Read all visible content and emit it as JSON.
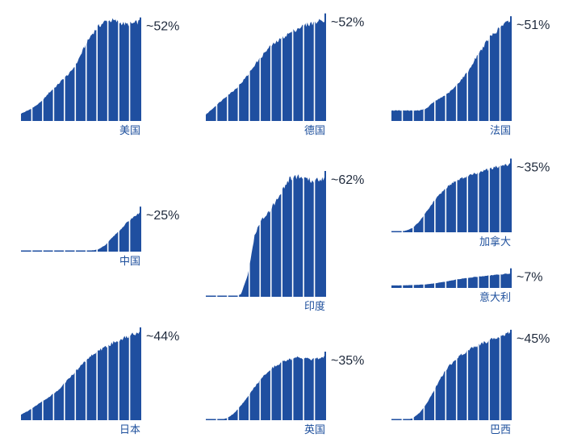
{
  "colors": {
    "fill": "#1f4fa0",
    "gap": "#ffffff",
    "pct_text": "#1f2a3c",
    "label_text": "#1d4f9c"
  },
  "chart_data": [
    {
      "type": "area",
      "country": "美国",
      "pct": "~52%",
      "values": [
        0.07,
        0.1,
        0.14,
        0.19,
        0.27,
        0.33,
        0.4,
        0.46,
        0.56,
        0.7,
        0.82,
        0.9,
        0.95,
        0.96,
        0.94,
        0.92,
        0.93,
        0.95
      ]
    },
    {
      "type": "area",
      "country": "德国",
      "pct": "~52%",
      "values": [
        0.06,
        0.12,
        0.18,
        0.24,
        0.29,
        0.36,
        0.44,
        0.54,
        0.62,
        0.7,
        0.75,
        0.8,
        0.84,
        0.88,
        0.91,
        0.93,
        0.95,
        0.97
      ]
    },
    {
      "type": "area",
      "country": "法国",
      "pct": "~51%",
      "values": [
        0.1,
        0.1,
        0.1,
        0.1,
        0.1,
        0.12,
        0.18,
        0.22,
        0.26,
        0.32,
        0.4,
        0.48,
        0.6,
        0.7,
        0.8,
        0.86,
        0.92,
        0.96
      ]
    },
    {
      "type": "area",
      "country": "中国",
      "pct": "~25%",
      "values": [
        0.0,
        0.0,
        0.0,
        0.0,
        0.0,
        0.0,
        0.0,
        0.0,
        0.0,
        0.0,
        0.02,
        0.04,
        0.12,
        0.26,
        0.38,
        0.52,
        0.63,
        0.72
      ]
    },
    {
      "type": "area",
      "country": "印度",
      "pct": "~62%",
      "values": [
        0.0,
        0.0,
        0.0,
        0.0,
        0.0,
        0.02,
        0.18,
        0.5,
        0.62,
        0.68,
        0.76,
        0.86,
        0.94,
        0.96,
        0.94,
        0.92,
        0.93,
        0.95
      ]
    },
    {
      "type": "area",
      "country": "加拿大",
      "pct": "~35%",
      "values": [
        0.0,
        0.01,
        0.02,
        0.06,
        0.15,
        0.29,
        0.42,
        0.54,
        0.63,
        0.7,
        0.74,
        0.78,
        0.81,
        0.84,
        0.87,
        0.9,
        0.92,
        0.94
      ]
    },
    {
      "type": "area",
      "country": "意大利",
      "pct": "~7%",
      "values": [
        0.14,
        0.14,
        0.15,
        0.16,
        0.18,
        0.2,
        0.25,
        0.31,
        0.38,
        0.45,
        0.52,
        0.57,
        0.62,
        0.66,
        0.7,
        0.74,
        0.78,
        0.82
      ]
    },
    {
      "type": "area",
      "country": "日本",
      "pct": "~44%",
      "values": [
        0.06,
        0.1,
        0.15,
        0.2,
        0.25,
        0.3,
        0.38,
        0.46,
        0.54,
        0.62,
        0.69,
        0.74,
        0.78,
        0.82,
        0.86,
        0.89,
        0.92,
        0.95
      ]
    },
    {
      "type": "area",
      "country": "英国",
      "pct": "~35%",
      "values": [
        0.0,
        0.0,
        0.0,
        0.03,
        0.09,
        0.2,
        0.32,
        0.46,
        0.58,
        0.68,
        0.75,
        0.8,
        0.83,
        0.85,
        0.84,
        0.82,
        0.84,
        0.87
      ]
    },
    {
      "type": "area",
      "country": "巴西",
      "pct": "~45%",
      "values": [
        0.0,
        0.0,
        0.0,
        0.02,
        0.08,
        0.18,
        0.32,
        0.46,
        0.58,
        0.66,
        0.72,
        0.77,
        0.81,
        0.85,
        0.88,
        0.91,
        0.93,
        0.96
      ]
    }
  ]
}
